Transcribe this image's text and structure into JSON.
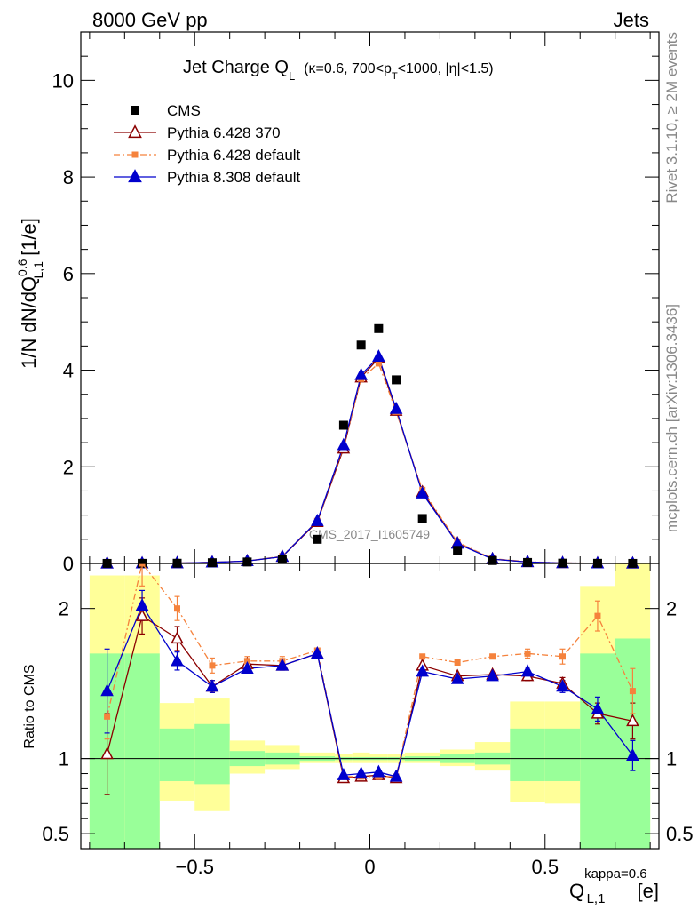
{
  "header": {
    "left": "8000 GeV pp",
    "right": "Jets"
  },
  "side_labels": {
    "rivet": "Rivet 3.1.10, ≥ 2M events",
    "mcplots": "mcplots.cern.ch [arXiv:1306.3436]"
  },
  "watermark": "CMS_2017_I1605749",
  "chart_data": {
    "type": "scatter",
    "title": {
      "main": "Jet Charge Q",
      "main_sub": "L",
      "cond": "(κ=0.6, 700<p",
      "cond_sub": "T",
      "cond_tail": "<1000, |η|<1.5)"
    },
    "ylabel": {
      "pre": "1/N dN/dQ",
      "sup": "0.6",
      "sub": "L,1",
      "post": " [1/e]"
    },
    "xlabel": {
      "pre": "Q",
      "sup": "kappa=0.6",
      "sub": "L,1",
      "post": " [e]"
    },
    "ratio_ylabel": "Ratio to CMS",
    "xlim": [
      -0.825,
      0.825
    ],
    "ylim": [
      0,
      11
    ],
    "x_ticks": [
      -0.5,
      0,
      0.5
    ],
    "x_tick_labels": [
      "−0.5",
      "0",
      "0.5"
    ],
    "y_ticks": [
      0,
      2,
      4,
      6,
      8,
      10
    ],
    "y_tick_labels": [
      "0",
      "2",
      "4",
      "6",
      "8",
      "10"
    ],
    "ratio_ylim": [
      0.4,
      2.3
    ],
    "ratio_ticks": [
      0.5,
      1,
      2
    ],
    "ratio_tick_labels": [
      "0.5",
      "1",
      "2"
    ],
    "legend": [
      {
        "name": "CMS",
        "color": "#000000",
        "marker": "square",
        "line": "none"
      },
      {
        "name": "Pythia 6.428 370",
        "color": "#8b0000",
        "marker": "open-triangle",
        "line": "solid"
      },
      {
        "name": "Pythia 6.428 default",
        "color": "#f5823c",
        "marker": "square",
        "line": "dashdot"
      },
      {
        "name": "Pythia 8.308 default",
        "color": "#0000cd",
        "marker": "filled-triangle",
        "line": "solid"
      }
    ],
    "bins": [
      [
        -0.8,
        -0.7
      ],
      [
        -0.7,
        -0.6
      ],
      [
        -0.6,
        -0.5
      ],
      [
        -0.5,
        -0.4
      ],
      [
        -0.4,
        -0.3
      ],
      [
        -0.3,
        -0.2
      ],
      [
        -0.2,
        -0.1
      ],
      [
        -0.1,
        -0.05
      ],
      [
        -0.05,
        0
      ],
      [
        0,
        0.05
      ],
      [
        0.05,
        0.1
      ],
      [
        0.1,
        0.2
      ],
      [
        0.2,
        0.3
      ],
      [
        0.3,
        0.4
      ],
      [
        0.4,
        0.5
      ],
      [
        0.5,
        0.6
      ],
      [
        0.6,
        0.7
      ],
      [
        0.7,
        0.8
      ]
    ],
    "x": [
      -0.75,
      -0.65,
      -0.55,
      -0.45,
      -0.35,
      -0.25,
      -0.15,
      -0.075,
      -0.025,
      0.025,
      0.075,
      0.15,
      0.25,
      0.35,
      0.45,
      0.55,
      0.65,
      0.75
    ],
    "cms": [
      0.001,
      0.002,
      0.004,
      0.015,
      0.03,
      0.09,
      0.5,
      2.86,
      4.52,
      4.86,
      3.8,
      0.93,
      0.27,
      0.06,
      0.02,
      0.006,
      0.003,
      0.001
    ],
    "series": [
      {
        "name": "Pythia 6.428 370",
        "values": [
          0.001,
          0.004,
          0.007,
          0.022,
          0.05,
          0.14,
          0.86,
          2.38,
          3.85,
          4.25,
          3.16,
          1.48,
          0.42,
          0.09,
          0.03,
          0.009,
          0.004,
          0.001
        ]
      },
      {
        "name": "Pythia 6.428 default",
        "values": [
          0.001,
          0.004,
          0.008,
          0.024,
          0.05,
          0.15,
          0.88,
          2.42,
          3.82,
          4.14,
          3.14,
          1.52,
          0.44,
          0.1,
          0.035,
          0.01,
          0.006,
          0.002
        ]
      },
      {
        "name": "Pythia 8.308 default",
        "values": [
          0.002,
          0.004,
          0.007,
          0.022,
          0.05,
          0.14,
          0.88,
          2.45,
          3.9,
          4.28,
          3.2,
          1.45,
          0.41,
          0.09,
          0.03,
          0.009,
          0.004,
          0.001
        ]
      }
    ],
    "ratio": {
      "series": [
        {
          "name": "Pythia 6.428 370",
          "values": [
            1.03,
            1.95,
            1.8,
            1.48,
            1.63,
            1.62,
            1.7,
            0.87,
            0.88,
            0.89,
            0.87,
            1.62,
            1.55,
            1.56,
            1.55,
            1.5,
            1.3,
            1.25
          ],
          "err": [
            0.27,
            0.12,
            0.08,
            0.04,
            0.03,
            0.03,
            0.02,
            0.01,
            0.01,
            0.01,
            0.01,
            0.02,
            0.02,
            0.02,
            0.03,
            0.04,
            0.07,
            0.12
          ]
        },
        {
          "name": "Pythia 6.428 default",
          "values": [
            1.28,
            2.3,
            2.0,
            1.62,
            1.65,
            1.65,
            1.72,
            0.88,
            0.88,
            0.88,
            0.88,
            1.68,
            1.64,
            1.68,
            1.7,
            1.68,
            1.95,
            1.45
          ],
          "err": [
            0.15,
            0.15,
            0.08,
            0.05,
            0.03,
            0.03,
            0.02,
            0.01,
            0.01,
            0.01,
            0.01,
            0.02,
            0.02,
            0.02,
            0.03,
            0.05,
            0.1,
            0.15
          ]
        },
        {
          "name": "Pythia 8.308 default",
          "values": [
            1.45,
            2.02,
            1.65,
            1.48,
            1.6,
            1.62,
            1.7,
            0.89,
            0.9,
            0.91,
            0.88,
            1.58,
            1.53,
            1.55,
            1.58,
            1.48,
            1.33,
            1.02
          ],
          "err": [
            0.28,
            0.1,
            0.06,
            0.04,
            0.03,
            0.03,
            0.02,
            0.01,
            0.01,
            0.01,
            0.01,
            0.02,
            0.02,
            0.02,
            0.03,
            0.04,
            0.08,
            0.1
          ]
        }
      ],
      "band_inner": [
        [
          0.4,
          1.7
        ],
        [
          0.4,
          1.7
        ],
        [
          0.85,
          1.2
        ],
        [
          0.83,
          1.23
        ],
        [
          0.95,
          1.05
        ],
        [
          0.96,
          1.04
        ],
        [
          0.985,
          1.015
        ],
        [
          0.99,
          1.01
        ],
        [
          0.99,
          1.01
        ],
        [
          0.99,
          1.01
        ],
        [
          0.99,
          1.01
        ],
        [
          0.985,
          1.015
        ],
        [
          0.97,
          1.03
        ],
        [
          0.96,
          1.04
        ],
        [
          0.85,
          1.2
        ],
        [
          0.85,
          1.2
        ],
        [
          0.4,
          1.7
        ],
        [
          0.4,
          1.8
        ]
      ],
      "band_outer": [
        [
          0.4,
          2.22
        ],
        [
          0.4,
          2.22
        ],
        [
          0.72,
          1.37
        ],
        [
          0.65,
          1.4
        ],
        [
          0.9,
          1.12
        ],
        [
          0.93,
          1.09
        ],
        [
          0.97,
          1.04
        ],
        [
          0.97,
          1.03
        ],
        [
          0.97,
          1.04
        ],
        [
          0.97,
          1.03
        ],
        [
          0.97,
          1.03
        ],
        [
          0.97,
          1.04
        ],
        [
          0.95,
          1.06
        ],
        [
          0.92,
          1.11
        ],
        [
          0.71,
          1.38
        ],
        [
          0.7,
          1.38
        ],
        [
          0.4,
          2.15
        ],
        [
          0.4,
          2.3
        ]
      ]
    }
  }
}
